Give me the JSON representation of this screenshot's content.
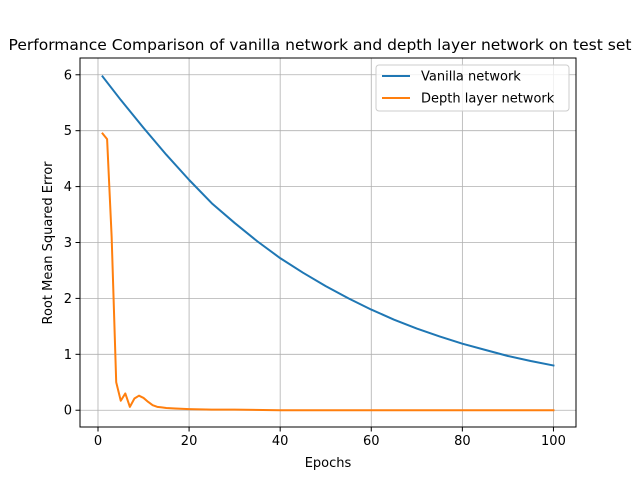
{
  "chart_data": {
    "type": "line",
    "title": "Performance Comparison of vanilla network and depth layer network on test set",
    "xlabel": "Epochs",
    "ylabel": "Root Mean Squared Error",
    "xlim": [
      -3.95,
      104.95
    ],
    "ylim": [
      -0.3,
      6.3
    ],
    "xticks": [
      0,
      20,
      40,
      60,
      80,
      100
    ],
    "yticks": [
      0,
      1,
      2,
      3,
      4,
      5,
      6
    ],
    "xtick_labels": [
      "0",
      "20",
      "40",
      "60",
      "80",
      "100"
    ],
    "ytick_labels": [
      "0",
      "1",
      "2",
      "3",
      "4",
      "5",
      "6"
    ],
    "grid": true,
    "legend_position": "top-right",
    "series": [
      {
        "name": "Vanilla network",
        "color": "#1f77b4",
        "x": [
          1,
          5,
          10,
          15,
          20,
          25,
          30,
          35,
          40,
          45,
          50,
          55,
          60,
          65,
          70,
          75,
          80,
          85,
          90,
          95,
          100
        ],
        "y": [
          5.97,
          5.55,
          5.05,
          4.57,
          4.12,
          3.7,
          3.35,
          3.02,
          2.72,
          2.46,
          2.22,
          2.0,
          1.8,
          1.62,
          1.46,
          1.32,
          1.19,
          1.08,
          0.97,
          0.88,
          0.8
        ]
      },
      {
        "name": "Depth layer network",
        "color": "#ff7f0e",
        "x": [
          1,
          2,
          3,
          4,
          5,
          6,
          7,
          8,
          9,
          10,
          11,
          12,
          13,
          14,
          15,
          17,
          20,
          25,
          30,
          40,
          50,
          60,
          70,
          80,
          90,
          100
        ],
        "y": [
          4.95,
          4.85,
          3.1,
          0.5,
          0.17,
          0.3,
          0.06,
          0.21,
          0.26,
          0.22,
          0.15,
          0.09,
          0.06,
          0.05,
          0.04,
          0.03,
          0.02,
          0.01,
          0.01,
          0.0,
          0.0,
          0.0,
          0.0,
          0.0,
          0.0,
          0.0
        ]
      }
    ]
  }
}
